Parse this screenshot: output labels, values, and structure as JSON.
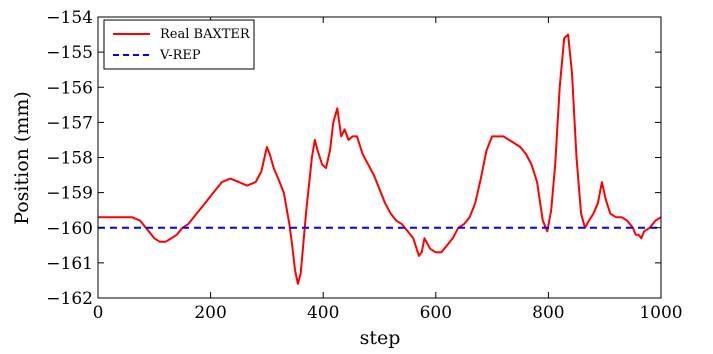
{
  "chart_data": {
    "type": "line",
    "xlabel": "step",
    "ylabel": "Position (mm)",
    "xlim": [
      0,
      1000
    ],
    "ylim": [
      -162,
      -154
    ],
    "xticks": [
      0,
      200,
      400,
      600,
      800,
      1000
    ],
    "xtick_labels": [
      "0",
      "200",
      "400",
      "600",
      "800",
      "1000"
    ],
    "yticks": [
      -154,
      -155,
      -156,
      -157,
      -158,
      -159,
      -160,
      -161,
      -162
    ],
    "ytick_labels": [
      "−154",
      "−155",
      "−156",
      "−157",
      "−158",
      "−159",
      "−160",
      "−161",
      "−162"
    ],
    "grid": false,
    "legend_position": "top-left",
    "series": [
      {
        "name": "Real BAXTER",
        "color": "#ff0000",
        "style": "solid",
        "x": [
          0,
          20,
          40,
          60,
          75,
          90,
          100,
          110,
          120,
          130,
          140,
          150,
          160,
          175,
          190,
          205,
          220,
          235,
          250,
          265,
          280,
          290,
          300,
          305,
          312,
          320,
          330,
          340,
          345,
          350,
          355,
          360,
          370,
          380,
          385,
          390,
          398,
          405,
          412,
          418,
          425,
          432,
          438,
          445,
          452,
          460,
          470,
          480,
          490,
          500,
          510,
          520,
          530,
          540,
          550,
          560,
          570,
          575,
          580,
          590,
          600,
          610,
          620,
          630,
          640,
          650,
          660,
          670,
          680,
          690,
          700,
          710,
          720,
          730,
          740,
          750,
          760,
          770,
          780,
          790,
          798,
          805,
          812,
          820,
          828,
          835,
          842,
          850,
          858,
          865,
          872,
          880,
          888,
          895,
          902,
          910,
          920,
          930,
          940,
          950,
          955,
          960,
          965,
          970,
          980,
          990,
          1000
        ],
        "y": [
          -159.7,
          -159.7,
          -159.7,
          -159.7,
          -159.8,
          -160.1,
          -160.3,
          -160.4,
          -160.4,
          -160.3,
          -160.2,
          -160.0,
          -159.9,
          -159.6,
          -159.3,
          -159.0,
          -158.7,
          -158.6,
          -158.7,
          -158.8,
          -158.7,
          -158.4,
          -157.7,
          -157.9,
          -158.3,
          -158.6,
          -159.0,
          -159.9,
          -160.5,
          -161.2,
          -161.6,
          -161.3,
          -159.5,
          -158.0,
          -157.5,
          -157.8,
          -158.2,
          -158.3,
          -157.8,
          -157.0,
          -156.6,
          -157.4,
          -157.2,
          -157.5,
          -157.4,
          -157.4,
          -157.9,
          -158.2,
          -158.5,
          -158.9,
          -159.3,
          -159.6,
          -159.8,
          -159.9,
          -160.1,
          -160.3,
          -160.8,
          -160.7,
          -160.3,
          -160.6,
          -160.7,
          -160.7,
          -160.5,
          -160.3,
          -160.0,
          -159.9,
          -159.7,
          -159.3,
          -158.6,
          -157.8,
          -157.4,
          -157.4,
          -157.4,
          -157.5,
          -157.6,
          -157.7,
          -157.9,
          -158.2,
          -158.7,
          -159.8,
          -160.1,
          -159.5,
          -158.2,
          -156.0,
          -154.6,
          -154.5,
          -155.6,
          -158.0,
          -159.6,
          -160.0,
          -159.8,
          -159.6,
          -159.3,
          -158.7,
          -159.2,
          -159.6,
          -159.7,
          -159.7,
          -159.8,
          -160.0,
          -160.2,
          -160.2,
          -160.3,
          -160.1,
          -160.0,
          -159.8,
          -159.7
        ]
      },
      {
        "name": "V-REP",
        "color": "#0000ff",
        "style": "dashed",
        "x": [
          0,
          1000
        ],
        "y": [
          -160.0,
          -160.0
        ]
      }
    ]
  }
}
